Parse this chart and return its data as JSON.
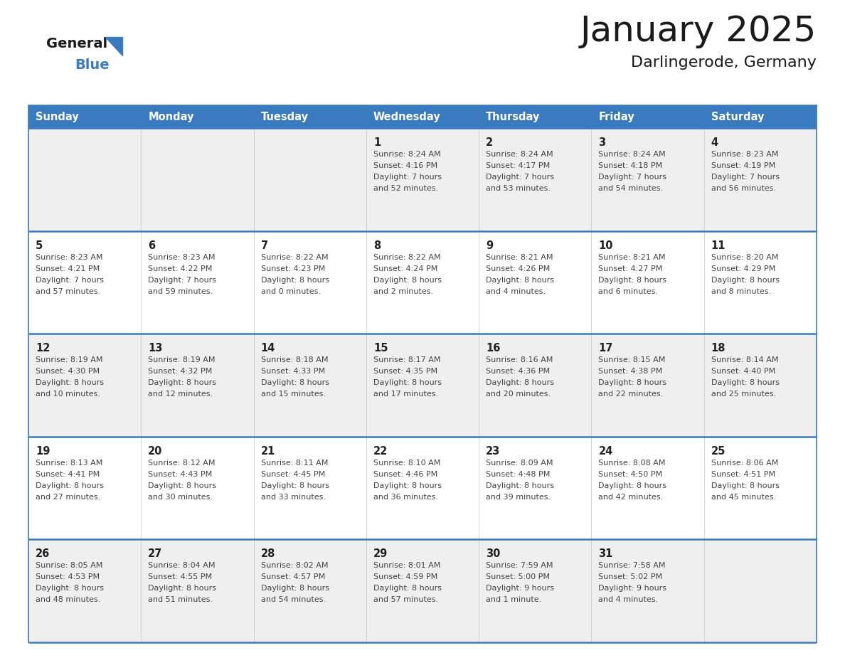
{
  "title": "January 2025",
  "subtitle": "Darlingerode, Germany",
  "header_bg_color": "#3a7bbf",
  "header_text_color": "#ffffff",
  "cell_bg_even": "#efefef",
  "cell_bg_odd": "#ffffff",
  "row_line_color": "#3a7bbf",
  "text_color": "#444444",
  "day_number_color": "#222222",
  "days_of_week": [
    "Sunday",
    "Monday",
    "Tuesday",
    "Wednesday",
    "Thursday",
    "Friday",
    "Saturday"
  ],
  "calendar_data": [
    [
      {
        "day": null,
        "sunrise": null,
        "sunset": null,
        "daylight_line1": null,
        "daylight_line2": null
      },
      {
        "day": null,
        "sunrise": null,
        "sunset": null,
        "daylight_line1": null,
        "daylight_line2": null
      },
      {
        "day": null,
        "sunrise": null,
        "sunset": null,
        "daylight_line1": null,
        "daylight_line2": null
      },
      {
        "day": 1,
        "sunrise": "8:24 AM",
        "sunset": "4:16 PM",
        "daylight_line1": "Daylight: 7 hours",
        "daylight_line2": "and 52 minutes."
      },
      {
        "day": 2,
        "sunrise": "8:24 AM",
        "sunset": "4:17 PM",
        "daylight_line1": "Daylight: 7 hours",
        "daylight_line2": "and 53 minutes."
      },
      {
        "day": 3,
        "sunrise": "8:24 AM",
        "sunset": "4:18 PM",
        "daylight_line1": "Daylight: 7 hours",
        "daylight_line2": "and 54 minutes."
      },
      {
        "day": 4,
        "sunrise": "8:23 AM",
        "sunset": "4:19 PM",
        "daylight_line1": "Daylight: 7 hours",
        "daylight_line2": "and 56 minutes."
      }
    ],
    [
      {
        "day": 5,
        "sunrise": "8:23 AM",
        "sunset": "4:21 PM",
        "daylight_line1": "Daylight: 7 hours",
        "daylight_line2": "and 57 minutes."
      },
      {
        "day": 6,
        "sunrise": "8:23 AM",
        "sunset": "4:22 PM",
        "daylight_line1": "Daylight: 7 hours",
        "daylight_line2": "and 59 minutes."
      },
      {
        "day": 7,
        "sunrise": "8:22 AM",
        "sunset": "4:23 PM",
        "daylight_line1": "Daylight: 8 hours",
        "daylight_line2": "and 0 minutes."
      },
      {
        "day": 8,
        "sunrise": "8:22 AM",
        "sunset": "4:24 PM",
        "daylight_line1": "Daylight: 8 hours",
        "daylight_line2": "and 2 minutes."
      },
      {
        "day": 9,
        "sunrise": "8:21 AM",
        "sunset": "4:26 PM",
        "daylight_line1": "Daylight: 8 hours",
        "daylight_line2": "and 4 minutes."
      },
      {
        "day": 10,
        "sunrise": "8:21 AM",
        "sunset": "4:27 PM",
        "daylight_line1": "Daylight: 8 hours",
        "daylight_line2": "and 6 minutes."
      },
      {
        "day": 11,
        "sunrise": "8:20 AM",
        "sunset": "4:29 PM",
        "daylight_line1": "Daylight: 8 hours",
        "daylight_line2": "and 8 minutes."
      }
    ],
    [
      {
        "day": 12,
        "sunrise": "8:19 AM",
        "sunset": "4:30 PM",
        "daylight_line1": "Daylight: 8 hours",
        "daylight_line2": "and 10 minutes."
      },
      {
        "day": 13,
        "sunrise": "8:19 AM",
        "sunset": "4:32 PM",
        "daylight_line1": "Daylight: 8 hours",
        "daylight_line2": "and 12 minutes."
      },
      {
        "day": 14,
        "sunrise": "8:18 AM",
        "sunset": "4:33 PM",
        "daylight_line1": "Daylight: 8 hours",
        "daylight_line2": "and 15 minutes."
      },
      {
        "day": 15,
        "sunrise": "8:17 AM",
        "sunset": "4:35 PM",
        "daylight_line1": "Daylight: 8 hours",
        "daylight_line2": "and 17 minutes."
      },
      {
        "day": 16,
        "sunrise": "8:16 AM",
        "sunset": "4:36 PM",
        "daylight_line1": "Daylight: 8 hours",
        "daylight_line2": "and 20 minutes."
      },
      {
        "day": 17,
        "sunrise": "8:15 AM",
        "sunset": "4:38 PM",
        "daylight_line1": "Daylight: 8 hours",
        "daylight_line2": "and 22 minutes."
      },
      {
        "day": 18,
        "sunrise": "8:14 AM",
        "sunset": "4:40 PM",
        "daylight_line1": "Daylight: 8 hours",
        "daylight_line2": "and 25 minutes."
      }
    ],
    [
      {
        "day": 19,
        "sunrise": "8:13 AM",
        "sunset": "4:41 PM",
        "daylight_line1": "Daylight: 8 hours",
        "daylight_line2": "and 27 minutes."
      },
      {
        "day": 20,
        "sunrise": "8:12 AM",
        "sunset": "4:43 PM",
        "daylight_line1": "Daylight: 8 hours",
        "daylight_line2": "and 30 minutes."
      },
      {
        "day": 21,
        "sunrise": "8:11 AM",
        "sunset": "4:45 PM",
        "daylight_line1": "Daylight: 8 hours",
        "daylight_line2": "and 33 minutes."
      },
      {
        "day": 22,
        "sunrise": "8:10 AM",
        "sunset": "4:46 PM",
        "daylight_line1": "Daylight: 8 hours",
        "daylight_line2": "and 36 minutes."
      },
      {
        "day": 23,
        "sunrise": "8:09 AM",
        "sunset": "4:48 PM",
        "daylight_line1": "Daylight: 8 hours",
        "daylight_line2": "and 39 minutes."
      },
      {
        "day": 24,
        "sunrise": "8:08 AM",
        "sunset": "4:50 PM",
        "daylight_line1": "Daylight: 8 hours",
        "daylight_line2": "and 42 minutes."
      },
      {
        "day": 25,
        "sunrise": "8:06 AM",
        "sunset": "4:51 PM",
        "daylight_line1": "Daylight: 8 hours",
        "daylight_line2": "and 45 minutes."
      }
    ],
    [
      {
        "day": 26,
        "sunrise": "8:05 AM",
        "sunset": "4:53 PM",
        "daylight_line1": "Daylight: 8 hours",
        "daylight_line2": "and 48 minutes."
      },
      {
        "day": 27,
        "sunrise": "8:04 AM",
        "sunset": "4:55 PM",
        "daylight_line1": "Daylight: 8 hours",
        "daylight_line2": "and 51 minutes."
      },
      {
        "day": 28,
        "sunrise": "8:02 AM",
        "sunset": "4:57 PM",
        "daylight_line1": "Daylight: 8 hours",
        "daylight_line2": "and 54 minutes."
      },
      {
        "day": 29,
        "sunrise": "8:01 AM",
        "sunset": "4:59 PM",
        "daylight_line1": "Daylight: 8 hours",
        "daylight_line2": "and 57 minutes."
      },
      {
        "day": 30,
        "sunrise": "7:59 AM",
        "sunset": "5:00 PM",
        "daylight_line1": "Daylight: 9 hours",
        "daylight_line2": "and 1 minute."
      },
      {
        "day": 31,
        "sunrise": "7:58 AM",
        "sunset": "5:02 PM",
        "daylight_line1": "Daylight: 9 hours",
        "daylight_line2": "and 4 minutes."
      },
      {
        "day": null,
        "sunrise": null,
        "sunset": null,
        "daylight_line1": null,
        "daylight_line2": null
      }
    ]
  ]
}
